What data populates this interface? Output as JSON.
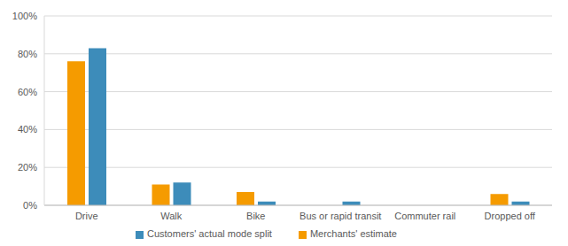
{
  "chart_data": {
    "type": "bar",
    "categories": [
      "Drive",
      "Walk",
      "Bike",
      "Bus or rapid transit",
      "Commuter rail",
      "Dropped off"
    ],
    "series": [
      {
        "name": "Merchants' estimate",
        "color": "#f59b00",
        "values": [
          76,
          11,
          7,
          0,
          0,
          6
        ]
      },
      {
        "name": "Customers' actual mode split",
        "color": "#3d8cba",
        "values": [
          83,
          12,
          2,
          2,
          0,
          2
        ]
      }
    ],
    "ylim": [
      0,
      100
    ],
    "yticks": [
      {
        "value": 0,
        "label": "0%"
      },
      {
        "value": 20,
        "label": "20%"
      },
      {
        "value": 40,
        "label": "40%"
      },
      {
        "value": 60,
        "label": "60%"
      },
      {
        "value": 80,
        "label": "80%"
      },
      {
        "value": 100,
        "label": "100%"
      }
    ],
    "grid": true,
    "legend": "bottom"
  }
}
